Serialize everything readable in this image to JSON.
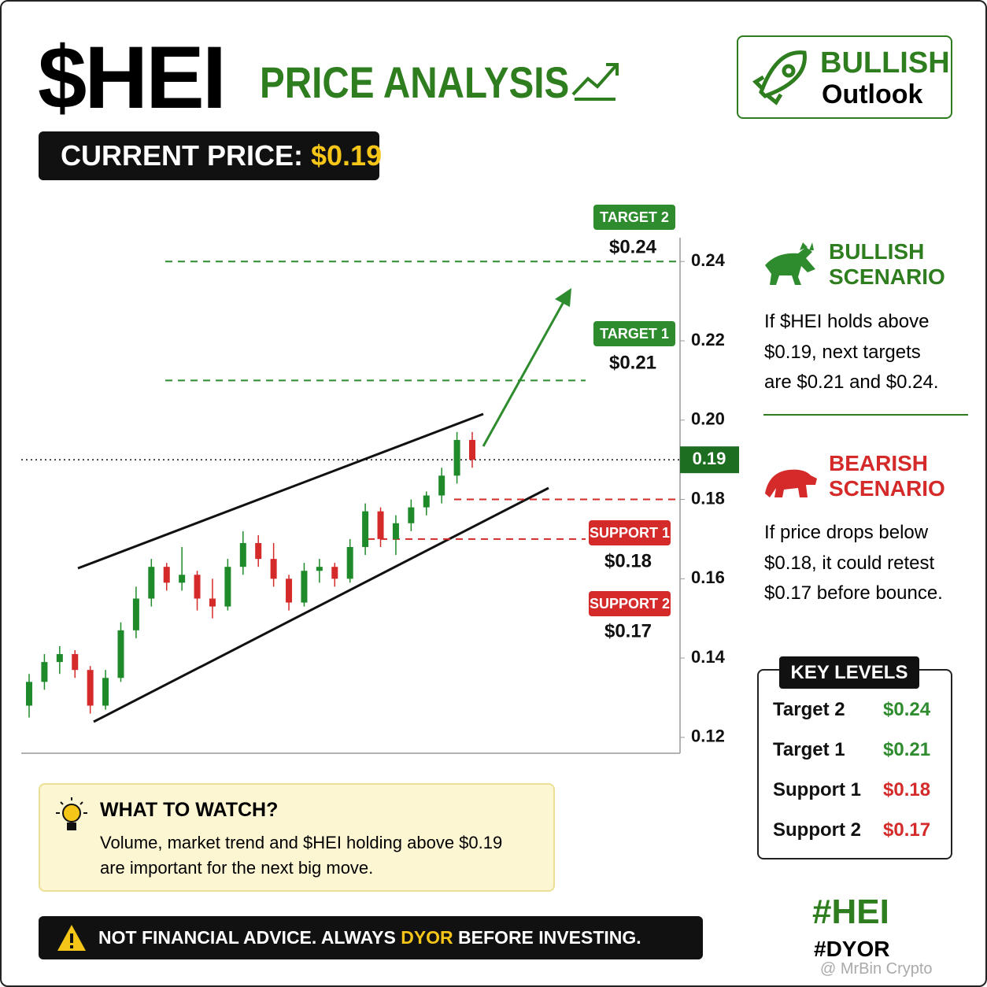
{
  "header": {
    "ticker": "$HEI",
    "title": "PRICE ANALYSIS",
    "current_price_label": "CURRENT PRICE: ",
    "current_price": "$0.19",
    "outlook": "BULLISH",
    "outlook_sub": "Outlook"
  },
  "chart_data": {
    "type": "candlestick",
    "up_color": "#1e8a2a",
    "down_color": "#d42a2a",
    "open": [
      0.128,
      0.134,
      0.139,
      0.141,
      0.137,
      0.128,
      0.135,
      0.147,
      0.155,
      0.163,
      0.159,
      0.161,
      0.155,
      0.153,
      0.163,
      0.169,
      0.165,
      0.16,
      0.154,
      0.162,
      0.163,
      0.16,
      0.168,
      0.177,
      0.17,
      0.174,
      0.178,
      0.181,
      0.186,
      0.195
    ],
    "high": [
      0.136,
      0.141,
      0.143,
      0.142,
      0.138,
      0.137,
      0.149,
      0.158,
      0.165,
      0.164,
      0.168,
      0.162,
      0.16,
      0.165,
      0.172,
      0.171,
      0.169,
      0.161,
      0.164,
      0.165,
      0.164,
      0.17,
      0.179,
      0.178,
      0.176,
      0.18,
      0.182,
      0.188,
      0.197,
      0.197
    ],
    "low": [
      0.125,
      0.132,
      0.136,
      0.135,
      0.126,
      0.127,
      0.134,
      0.145,
      0.153,
      0.157,
      0.157,
      0.152,
      0.15,
      0.152,
      0.161,
      0.163,
      0.158,
      0.152,
      0.153,
      0.159,
      0.158,
      0.159,
      0.166,
      0.168,
      0.166,
      0.172,
      0.176,
      0.179,
      0.184,
      0.188
    ],
    "close": [
      0.134,
      0.139,
      0.141,
      0.137,
      0.128,
      0.135,
      0.147,
      0.155,
      0.163,
      0.159,
      0.161,
      0.155,
      0.153,
      0.163,
      0.169,
      0.165,
      0.16,
      0.154,
      0.162,
      0.163,
      0.16,
      0.168,
      0.177,
      0.17,
      0.174,
      0.178,
      0.181,
      0.186,
      0.195,
      0.19
    ],
    "ylim": [
      0.116,
      0.246
    ],
    "yticks": [
      0.12,
      0.14,
      0.16,
      0.18,
      {
        "value": 0.2,
        "label": "0.20"
      },
      0.22,
      0.24
    ],
    "current_price_line": 0.19,
    "levels": [
      {
        "name": "TARGET 2",
        "value": 0.24,
        "label": "$0.24",
        "color": "#2e8b2e"
      },
      {
        "name": "TARGET 1",
        "value": 0.21,
        "label": "$0.21",
        "color": "#2e8b2e"
      },
      {
        "name": "SUPPORT 1",
        "value": 0.18,
        "label": "$0.18",
        "color": "#d42a2a"
      },
      {
        "name": "SUPPORT 2",
        "value": 0.17,
        "label": "$0.17",
        "color": "#d42a2a"
      }
    ]
  },
  "bullish": {
    "title": [
      "BULLISH",
      "SCENARIO"
    ],
    "text": [
      "If $HEI holds above",
      "$0.19, next targets",
      "are $0.21 and $0.24."
    ]
  },
  "bearish": {
    "title": [
      "BEARISH",
      "SCENARIO"
    ],
    "text": [
      "If price drops below",
      "$0.18, it could retest",
      "$0.17 before bounce."
    ]
  },
  "key_levels": {
    "title": "KEY LEVELS",
    "rows": [
      {
        "name": "Target 2",
        "value": "$0.24"
      },
      {
        "name": "Target 1",
        "value": "$0.21"
      },
      {
        "name": "Support 1",
        "value": "$0.18"
      },
      {
        "name": "Support 2",
        "value": "$0.17"
      }
    ]
  },
  "watch": {
    "title": "WHAT TO WATCH?",
    "text": [
      "Volume, market trend and $HEI holding above $0.19",
      "are important for the next big move."
    ]
  },
  "disclaimer": {
    "before": "NOT FINANCIAL ADVICE. ALWAYS ",
    "highlight": "DYOR",
    "after": " BEFORE INVESTING."
  },
  "tags": [
    "#HEI",
    "#DYOR"
  ],
  "watermark": "@ MrBin Crypto"
}
